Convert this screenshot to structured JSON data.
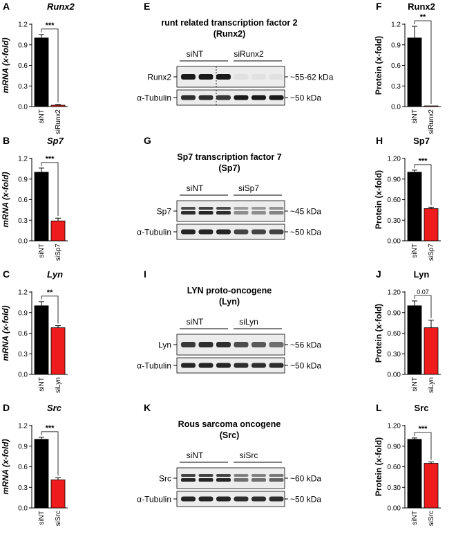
{
  "colors": {
    "control": "#000000",
    "knockdown": "#ee1c1c",
    "blot_bg": "#ececec",
    "band": "#1a1a1a"
  },
  "mrna_panels": [
    {
      "letter": "A",
      "gene": "Runx2",
      "ylabel": "mRNA (x-fold)",
      "ylim": [
        0,
        1.2
      ],
      "ticks": [
        "0.0",
        "0.3",
        "0.6",
        "0.9",
        "1.2"
      ],
      "tick_values": [
        0,
        0.3,
        0.6,
        0.9,
        1.2
      ],
      "categories": [
        "siNT",
        "siRunx2"
      ],
      "values": [
        1.0,
        0.02
      ],
      "errors": [
        0.05,
        0.01
      ],
      "sig": "***"
    },
    {
      "letter": "B",
      "gene": "Sp7",
      "ylabel": "mRNA (x-fold)",
      "ylim": [
        0,
        1.2
      ],
      "ticks": [
        "0.0",
        "0.3",
        "0.6",
        "0.9",
        "1.2"
      ],
      "tick_values": [
        0,
        0.3,
        0.6,
        0.9,
        1.2
      ],
      "categories": [
        "siNT",
        "siSp7"
      ],
      "values": [
        1.0,
        0.29
      ],
      "errors": [
        0.06,
        0.04
      ],
      "sig": "***"
    },
    {
      "letter": "C",
      "gene": "Lyn",
      "ylabel": "mRNA (x-fold)",
      "ylim": [
        0,
        1.2
      ],
      "ticks": [
        "0.0",
        "0.3",
        "0.6",
        "0.9",
        "1.2"
      ],
      "tick_values": [
        0,
        0.3,
        0.6,
        0.9,
        1.2
      ],
      "categories": [
        "siNT",
        "siLyn"
      ],
      "values": [
        1.0,
        0.68
      ],
      "errors": [
        0.06,
        0.03
      ],
      "sig": "**"
    },
    {
      "letter": "D",
      "gene": "Src",
      "ylabel": "mRNA (x-fold)",
      "ylim": [
        0,
        1.2
      ],
      "ticks": [
        "0.0",
        "0.3",
        "0.6",
        "0.9",
        "1.2"
      ],
      "tick_values": [
        0,
        0.3,
        0.6,
        0.9,
        1.2
      ],
      "categories": [
        "siNT",
        "siSrc"
      ],
      "values": [
        1.0,
        0.41
      ],
      "errors": [
        0.03,
        0.03
      ],
      "sig": "***"
    }
  ],
  "blots": [
    {
      "letter": "E",
      "title1": "runt related transcription factor 2",
      "title2": "(Runx2)",
      "groups": [
        "siNT",
        "siRunx2"
      ],
      "target": "Runx2",
      "target_kda": "~55-62 kDa",
      "tubulin": "α-Tubulin",
      "tubulin_kda": "~50 kDa",
      "target_levels": [
        1,
        1,
        1,
        0.06,
        0.05,
        0.05
      ],
      "tubulin_levels": [
        0.9,
        0.9,
        0.85,
        1,
        1,
        1
      ],
      "divider": true
    },
    {
      "letter": "G",
      "title1": "Sp7 transcription factor 7",
      "title2": "(Sp7)",
      "groups": [
        "siNT",
        "siSp7"
      ],
      "target": "Sp7",
      "target_kda": "~45 kDa",
      "tubulin": "α-Tubulin",
      "tubulin_kda": "~50 kDa",
      "target_levels": [
        0.9,
        0.95,
        0.9,
        0.45,
        0.45,
        0.5
      ],
      "tubulin_levels": [
        0.95,
        0.95,
        0.95,
        0.8,
        0.8,
        0.8
      ],
      "divider": false
    },
    {
      "letter": "I",
      "title1": "LYN proto-oncogene",
      "title2": "(Lyn)",
      "groups": [
        "siNT",
        "siLyn"
      ],
      "target": "Lyn",
      "target_kda": "~56 kDa",
      "tubulin": "α-Tubulin",
      "tubulin_kda": "~50 kDa",
      "target_levels": [
        0.85,
        0.9,
        0.9,
        0.75,
        0.7,
        0.6
      ],
      "tubulin_levels": [
        0.95,
        0.95,
        0.95,
        0.9,
        0.9,
        0.9
      ],
      "divider": false
    },
    {
      "letter": "K",
      "title1": "Rous sarcoma oncogene",
      "title2": "(Src)",
      "groups": [
        "siNT",
        "siSrc"
      ],
      "target": "Src",
      "target_kda": "~60 kDa",
      "tubulin": "α-Tubulin",
      "tubulin_kda": "~50 kDa",
      "target_levels": [
        0.95,
        0.95,
        0.95,
        0.6,
        0.6,
        0.65
      ],
      "tubulin_levels": [
        0.95,
        0.95,
        0.95,
        0.9,
        0.9,
        0.9
      ],
      "divider": false
    }
  ],
  "protein_panels": [
    {
      "letter": "F",
      "gene": "Runx2",
      "ylabel": "Protein (x-fold)",
      "ylim": [
        0,
        1.2
      ],
      "ticks": [
        "0.0",
        "0.3",
        "0.6",
        "0.9",
        "1.2"
      ],
      "tick_values": [
        0,
        0.3,
        0.6,
        0.9,
        1.2
      ],
      "categories": [
        "siNT",
        "siRunx2"
      ],
      "values": [
        1.0,
        0.01
      ],
      "errors": [
        0.17,
        0.0
      ],
      "sig": "**"
    },
    {
      "letter": "H",
      "gene": "Sp7",
      "ylabel": "Protein (x-fold)",
      "ylim": [
        0,
        1.2
      ],
      "ticks": [
        "0.00",
        "0.30",
        "0.60",
        "0.90",
        "1.20"
      ],
      "tick_values": [
        0,
        0.3,
        0.6,
        0.9,
        1.2
      ],
      "categories": [
        "siNT",
        "siSp7"
      ],
      "values": [
        1.0,
        0.47
      ],
      "errors": [
        0.03,
        0.02
      ],
      "sig": "***"
    },
    {
      "letter": "J",
      "gene": "Lyn",
      "ylabel": "Protein (x-fold)",
      "ylim": [
        0,
        1.2
      ],
      "ticks": [
        "0.00",
        "0.30",
        "0.60",
        "0.90",
        "1.20"
      ],
      "tick_values": [
        0,
        0.3,
        0.6,
        0.9,
        1.2
      ],
      "categories": [
        "siNT",
        "siLyn"
      ],
      "values": [
        1.0,
        0.68
      ],
      "errors": [
        0.07,
        0.11
      ],
      "sig": "0.07"
    },
    {
      "letter": "L",
      "gene": "Src",
      "ylabel": "Protein (x-fold)",
      "ylim": [
        0,
        1.2
      ],
      "ticks": [
        "0.00",
        "0.30",
        "0.60",
        "0.90",
        "1.20"
      ],
      "tick_values": [
        0,
        0.3,
        0.6,
        0.9,
        1.2
      ],
      "categories": [
        "siNT",
        "siSrc"
      ],
      "values": [
        1.0,
        0.65
      ],
      "errors": [
        0.02,
        0.02
      ],
      "sig": "***"
    }
  ]
}
